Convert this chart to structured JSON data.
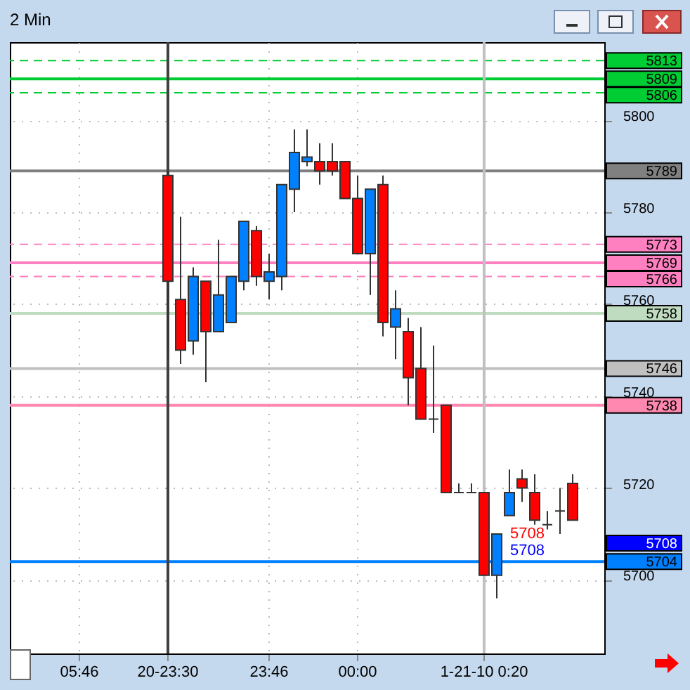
{
  "chart_data": {
    "type": "candlestick",
    "title": "2 Min",
    "categories": [
      null,
      null,
      null,
      null,
      null,
      "05:46",
      null,
      null,
      null,
      null,
      null,
      null,
      "20-23:30",
      null,
      null,
      null,
      null,
      null,
      null,
      null,
      "23:46",
      null,
      null,
      null,
      null,
      null,
      null,
      "00:00",
      null,
      null,
      null,
      null,
      null,
      null,
      null,
      null,
      null,
      "1-21-10 0:20",
      null,
      null,
      null,
      null,
      null,
      null,
      null,
      null,
      null
    ],
    "ohlc": [
      null,
      null,
      null,
      null,
      null,
      null,
      null,
      null,
      null,
      null,
      null,
      null,
      [
        5788,
        5789,
        5748,
        5765
      ],
      [
        5761,
        5779,
        5747,
        5750
      ],
      [
        5752,
        5768,
        5749,
        5766
      ],
      [
        5765,
        5765,
        5743,
        5754
      ],
      [
        5754,
        5774,
        5754,
        5762
      ],
      [
        5756,
        5766,
        5756,
        5766
      ],
      [
        5765,
        5778,
        5763,
        5778
      ],
      [
        5776,
        5777,
        5764,
        5766
      ],
      [
        5765,
        5771,
        5761,
        5767
      ],
      [
        5766,
        5786,
        5763,
        5786
      ],
      [
        5785,
        5798,
        5780,
        5793
      ],
      [
        5791,
        5798,
        5790,
        5792
      ],
      [
        5791,
        5795,
        5786,
        5789
      ],
      [
        5791,
        5795,
        5788,
        5789
      ],
      [
        5791,
        5791,
        5783,
        5783
      ],
      [
        5783,
        5788,
        5771,
        5771
      ],
      [
        5771,
        5785,
        5762,
        5785
      ],
      [
        5786,
        5788,
        5753,
        5756
      ],
      [
        5755,
        5763,
        5748,
        5759
      ],
      [
        5754,
        5757,
        5738,
        5744
      ],
      [
        5746,
        5755,
        5735,
        5735
      ],
      [
        5735,
        5751,
        5732,
        5735
      ],
      [
        5738,
        5738,
        5719,
        5719
      ],
      [
        5719,
        5721,
        5719,
        5719
      ],
      [
        5719,
        5721,
        5719,
        5719
      ],
      [
        5719,
        5719,
        5701,
        5701
      ],
      [
        5701,
        5710,
        5696,
        5710
      ],
      [
        5714,
        5724,
        5714,
        5719
      ],
      [
        5722,
        5724,
        5717,
        5720
      ],
      [
        5719,
        5723,
        5712,
        5713
      ],
      [
        5712,
        5715,
        5711,
        5712
      ],
      [
        5715,
        5720,
        5710,
        5715
      ],
      [
        5721,
        5723,
        5713,
        5713
      ],
      null,
      null
    ],
    "colors": [
      null,
      null,
      null,
      null,
      null,
      null,
      null,
      null,
      null,
      null,
      null,
      null,
      "#ff0000",
      "#ff0000",
      "#0080ff",
      "#ff0000",
      "#0080ff",
      "#0080ff",
      "#0080ff",
      "#ff0000",
      "#0080ff",
      "#0080ff",
      "#0080ff",
      "#0080ff",
      "#ff0000",
      "#ff0000",
      "#ff0000",
      "#ff0000",
      "#0080ff",
      "#ff0000",
      "#0080ff",
      "#ff0000",
      "#ff0000",
      "#333333",
      "#ff0000",
      "#333333",
      "#333333",
      "#ff0000",
      "#0080ff",
      "#0080ff",
      "#ff0000",
      "#ff0000",
      "#333333",
      "#333333",
      "#ff0000",
      null,
      null
    ],
    "ylim": [
      5684,
      5817
    ],
    "yticks": [
      5700,
      5720,
      5740,
      5760,
      5780,
      5800
    ],
    "grid": true,
    "ref_lines": [
      {
        "axis": "y",
        "value": 5813,
        "label": "5813",
        "color": "#00cc33",
        "line_style": "dashed"
      },
      {
        "axis": "y",
        "value": 5809,
        "label": "5809",
        "color": "#00cc33",
        "line_style": "solid"
      },
      {
        "axis": "y",
        "value": 5806,
        "label": "5806",
        "color": "#00cc33",
        "line_style": "dashed"
      },
      {
        "axis": "y",
        "value": 5789,
        "label": "5789",
        "color": "#808080",
        "line_style": "solid"
      },
      {
        "axis": "y",
        "value": 5773,
        "label": "5773",
        "color": "#ff80c0",
        "line_style": "dashed"
      },
      {
        "axis": "y",
        "value": 5769,
        "label": "5769",
        "color": "#ff80c0",
        "line_style": "solid"
      },
      {
        "axis": "y",
        "value": 5766,
        "label": "5766",
        "color": "#ff80c0",
        "line_style": "dashed"
      },
      {
        "axis": "y",
        "value": 5758,
        "label": "5758",
        "color": "#c0dcc0",
        "line_style": "solid"
      },
      {
        "axis": "y",
        "value": 5746,
        "label": "5746",
        "color": "#c0c0c0",
        "line_style": "solid"
      },
      {
        "axis": "y",
        "value": 5738,
        "label": "5738",
        "color": "#ff88b0",
        "line_style": "solid"
      },
      {
        "axis": "y",
        "value": 5704,
        "label": "5704",
        "color": "#0080ff",
        "line_style": "solid"
      },
      {
        "axis": "x",
        "value": "20-23:30",
        "color": "#404040",
        "line_style": "solid"
      },
      {
        "axis": "x",
        "value": "1-21-10 0:20",
        "color": "#c0c0c0",
        "line_style": "solid"
      }
    ],
    "annotations": [
      "5708",
      "5708",
      "5708"
    ]
  }
}
